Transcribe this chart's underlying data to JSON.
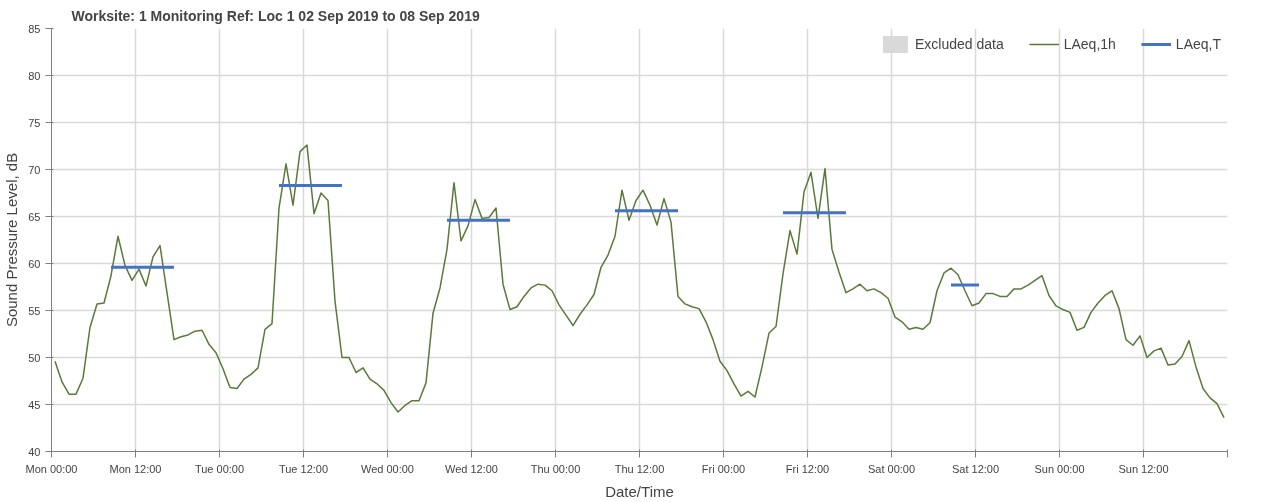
{
  "chart_data": {
    "type": "line",
    "title": "Worksite: 1    Monitoring Ref: Loc 1     02 Sep 2019 to 08 Sep 2019",
    "xlabel": "Date/Time",
    "ylabel": "Sound Pressure Level, dB",
    "xlim": [
      "2019-09-02T00:00",
      "2019-09-09T00:00"
    ],
    "xticks": [
      {
        "value": "2019-09-02T00:00",
        "label": "Mon 00:00"
      },
      {
        "value": "2019-09-02T12:00",
        "label": "Mon 12:00"
      },
      {
        "value": "2019-09-03T00:00",
        "label": "Tue 00:00"
      },
      {
        "value": "2019-09-03T12:00",
        "label": "Tue 12:00"
      },
      {
        "value": "2019-09-04T00:00",
        "label": "Wed 00:00"
      },
      {
        "value": "2019-09-04T12:00",
        "label": "Wed 12:00"
      },
      {
        "value": "2019-09-05T00:00",
        "label": "Thu 00:00"
      },
      {
        "value": "2019-09-05T12:00",
        "label": "Thu 12:00"
      },
      {
        "value": "2019-09-06T00:00",
        "label": "Fri 00:00"
      },
      {
        "value": "2019-09-06T12:00",
        "label": "Fri 12:00"
      },
      {
        "value": "2019-09-07T00:00",
        "label": "Sat 00:00"
      },
      {
        "value": "2019-09-07T12:00",
        "label": "Sat 12:00"
      },
      {
        "value": "2019-09-08T00:00",
        "label": "Sun 00:00"
      },
      {
        "value": "2019-09-08T12:00",
        "label": "Sun 12:00"
      },
      {
        "value": "2019-09-09T00:00",
        "label": null
      }
    ],
    "ylim": [
      40,
      85
    ],
    "yticks": [
      40,
      45,
      50,
      55,
      60,
      65,
      70,
      75,
      80,
      85
    ],
    "grid": true,
    "legend": "top right",
    "series": [
      {
        "name": "Excluded data",
        "type": "area",
        "color": "#d9d9d9"
      },
      {
        "name": "LAeq,1h",
        "color": "#5a7a3a",
        "x": [
          "2019-09-02T00:30",
          "2019-09-02T01:30",
          "2019-09-02T02:30",
          "2019-09-02T03:30",
          "2019-09-02T04:30",
          "2019-09-02T05:30",
          "2019-09-02T06:30",
          "2019-09-02T07:30",
          "2019-09-02T08:30",
          "2019-09-02T09:30",
          "2019-09-02T10:30",
          "2019-09-02T11:30",
          "2019-09-02T12:30",
          "2019-09-02T13:30",
          "2019-09-02T14:30",
          "2019-09-02T15:30",
          "2019-09-02T16:30",
          "2019-09-02T17:30",
          "2019-09-02T18:30",
          "2019-09-02T19:30",
          "2019-09-02T20:30",
          "2019-09-02T21:30",
          "2019-09-02T22:30",
          "2019-09-02T23:30",
          "2019-09-03T00:30",
          "2019-09-03T01:30",
          "2019-09-03T02:30",
          "2019-09-03T03:30",
          "2019-09-03T04:30",
          "2019-09-03T05:30",
          "2019-09-03T06:30",
          "2019-09-03T07:30",
          "2019-09-03T08:30",
          "2019-09-03T09:30",
          "2019-09-03T10:30",
          "2019-09-03T11:30",
          "2019-09-03T12:30",
          "2019-09-03T13:30",
          "2019-09-03T14:30",
          "2019-09-03T15:30",
          "2019-09-03T16:30",
          "2019-09-03T17:30",
          "2019-09-03T18:30",
          "2019-09-03T19:30",
          "2019-09-03T20:30",
          "2019-09-03T21:30",
          "2019-09-03T22:30",
          "2019-09-03T23:30",
          "2019-09-04T00:30",
          "2019-09-04T01:30",
          "2019-09-04T02:30",
          "2019-09-04T03:30",
          "2019-09-04T04:30",
          "2019-09-04T05:30",
          "2019-09-04T06:30",
          "2019-09-04T07:30",
          "2019-09-04T08:30",
          "2019-09-04T09:30",
          "2019-09-04T10:30",
          "2019-09-04T11:30",
          "2019-09-04T12:30",
          "2019-09-04T13:30",
          "2019-09-04T14:30",
          "2019-09-04T15:30",
          "2019-09-04T16:30",
          "2019-09-04T17:30",
          "2019-09-04T18:30",
          "2019-09-04T19:30",
          "2019-09-04T20:30",
          "2019-09-04T21:30",
          "2019-09-04T22:30",
          "2019-09-04T23:30",
          "2019-09-05T00:30",
          "2019-09-05T01:30",
          "2019-09-05T02:30",
          "2019-09-05T03:30",
          "2019-09-05T04:30",
          "2019-09-05T05:30",
          "2019-09-05T06:30",
          "2019-09-05T07:30",
          "2019-09-05T08:30",
          "2019-09-05T09:30",
          "2019-09-05T10:30",
          "2019-09-05T11:30",
          "2019-09-05T12:30",
          "2019-09-05T13:30",
          "2019-09-05T14:30",
          "2019-09-05T15:30",
          "2019-09-05T16:30",
          "2019-09-05T17:30",
          "2019-09-05T18:30",
          "2019-09-05T19:30",
          "2019-09-05T20:30",
          "2019-09-05T21:30",
          "2019-09-05T22:30",
          "2019-09-05T23:30",
          "2019-09-06T00:30",
          "2019-09-06T01:30",
          "2019-09-06T02:30",
          "2019-09-06T03:30",
          "2019-09-06T04:30",
          "2019-09-06T05:30",
          "2019-09-06T06:30",
          "2019-09-06T07:30",
          "2019-09-06T08:30",
          "2019-09-06T09:30",
          "2019-09-06T10:30",
          "2019-09-06T11:30",
          "2019-09-06T12:30",
          "2019-09-06T13:30",
          "2019-09-06T14:30",
          "2019-09-06T15:30",
          "2019-09-06T16:30",
          "2019-09-06T17:30",
          "2019-09-06T18:30",
          "2019-09-06T19:30",
          "2019-09-06T20:30",
          "2019-09-06T21:30",
          "2019-09-06T22:30",
          "2019-09-06T23:30",
          "2019-09-07T00:30",
          "2019-09-07T01:30",
          "2019-09-07T02:30",
          "2019-09-07T03:30",
          "2019-09-07T04:30",
          "2019-09-07T05:30",
          "2019-09-07T06:30",
          "2019-09-07T07:30",
          "2019-09-07T08:30",
          "2019-09-07T09:30",
          "2019-09-07T10:30",
          "2019-09-07T11:30",
          "2019-09-07T12:30",
          "2019-09-07T13:30",
          "2019-09-07T14:30",
          "2019-09-07T15:30",
          "2019-09-07T16:30",
          "2019-09-07T17:30",
          "2019-09-07T18:30",
          "2019-09-07T19:30",
          "2019-09-07T20:30",
          "2019-09-07T21:30",
          "2019-09-07T22:30",
          "2019-09-07T23:30",
          "2019-09-08T00:30",
          "2019-09-08T01:30",
          "2019-09-08T02:30",
          "2019-09-08T03:30",
          "2019-09-08T04:30",
          "2019-09-08T05:30",
          "2019-09-08T06:30",
          "2019-09-08T07:30",
          "2019-09-08T08:30",
          "2019-09-08T09:30",
          "2019-09-08T10:30",
          "2019-09-08T11:30",
          "2019-09-08T12:30",
          "2019-09-08T13:30",
          "2019-09-08T14:30",
          "2019-09-08T15:30",
          "2019-09-08T16:30",
          "2019-09-08T17:30",
          "2019-09-08T18:30",
          "2019-09-08T19:30",
          "2019-09-08T20:30",
          "2019-09-08T21:30",
          "2019-09-08T22:30",
          "2019-09-08T23:30"
        ],
        "values": [
          49.6,
          47.4,
          46.1,
          46.1,
          47.8,
          53.2,
          55.7,
          55.8,
          58.7,
          62.9,
          59.8,
          58.2,
          59.4,
          57.6,
          60.7,
          61.9,
          56.9,
          51.9,
          52.2,
          52.4,
          52.8,
          52.9,
          51.4,
          50.5,
          48.8,
          46.8,
          46.7,
          47.7,
          48.2,
          48.9,
          53.0,
          53.6,
          65.9,
          70.6,
          66.2,
          71.9,
          72.6,
          65.3,
          67.5,
          66.7,
          56.0,
          50.0,
          50.0,
          48.4,
          48.9,
          47.7,
          47.2,
          46.5,
          45.2,
          44.2,
          44.9,
          45.4,
          45.4,
          47.3,
          54.7,
          57.4,
          61.5,
          68.6,
          62.4,
          64.0,
          66.8,
          64.8,
          64.9,
          65.9,
          57.8,
          55.1,
          55.4,
          56.5,
          57.4,
          57.8,
          57.7,
          57.1,
          55.6,
          54.5,
          53.4,
          54.6,
          55.6,
          56.7,
          59.6,
          60.9,
          62.9,
          67.8,
          64.6,
          66.7,
          67.8,
          66.2,
          64.1,
          66.9,
          64.4,
          56.5,
          55.7,
          55.4,
          55.2,
          53.8,
          51.9,
          49.6,
          48.6,
          47.2,
          45.9,
          46.4,
          45.8,
          49.0,
          52.6,
          53.3,
          58.9,
          63.5,
          61.0,
          67.6,
          69.7,
          64.8,
          70.1,
          61.5,
          59.1,
          56.9,
          57.3,
          57.8,
          57.1,
          57.3,
          56.9,
          56.3,
          54.3,
          53.8,
          53.0,
          53.2,
          53.0,
          53.7,
          57.1,
          59.0,
          59.5,
          58.8,
          57.1,
          55.5,
          55.8,
          56.8,
          56.8,
          56.5,
          56.5,
          57.3,
          57.3,
          57.7,
          58.2,
          58.7,
          56.6,
          55.5,
          55.1,
          54.8,
          52.9,
          53.2,
          54.8,
          55.8,
          56.6,
          57.1,
          55.2,
          51.9,
          51.3,
          52.3,
          50.0,
          50.7,
          51.0,
          49.2,
          49.3,
          50.1,
          51.8,
          49.0,
          46.7,
          45.7,
          45.1,
          43.6
        ]
      },
      {
        "name": "LAeq,T",
        "color": "#4472c4",
        "x": [
          "2019-09-02T08:30",
          "2019-09-02T17:30",
          "2019-09-03T01:00",
          "2019-09-03T08:30",
          "2019-09-03T17:30",
          "2019-09-04T01:00",
          "2019-09-04T08:30",
          "2019-09-04T17:30",
          "2019-09-05T01:00",
          "2019-09-05T08:30",
          "2019-09-05T17:30",
          "2019-09-06T01:00",
          "2019-09-06T08:30",
          "2019-09-06T17:30",
          "2019-09-07T01:00",
          "2019-09-07T08:30",
          "2019-09-07T12:30"
        ],
        "values": [
          59.6,
          59.6,
          null,
          68.3,
          68.3,
          null,
          64.6,
          64.6,
          null,
          65.6,
          65.6,
          null,
          65.4,
          65.4,
          null,
          57.7,
          57.7
        ]
      }
    ]
  }
}
